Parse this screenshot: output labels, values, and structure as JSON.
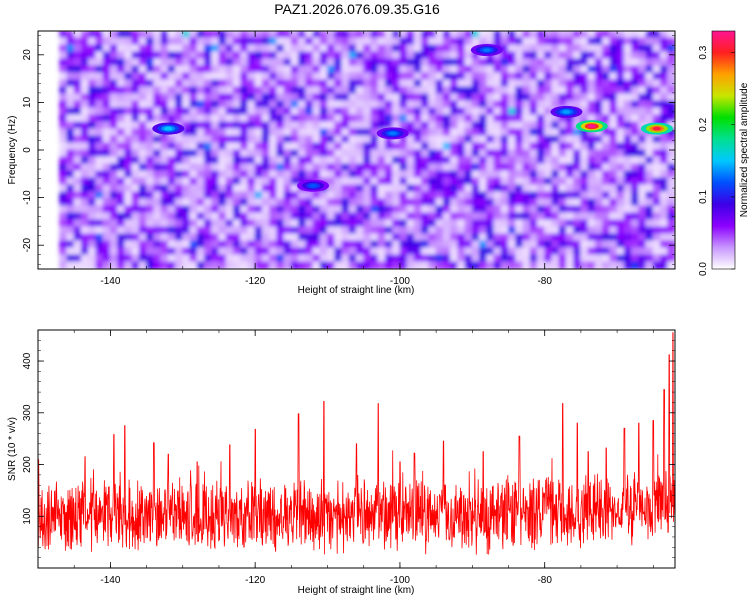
{
  "title": "PAZ1.2026.076.09.35.G16",
  "chart_data": [
    {
      "type": "heatmap",
      "title": "PAZ1.2026.076.09.35.G16",
      "xlabel": "Height of straight line (km)",
      "ylabel": "Frequency (Hz)",
      "xlim": [
        -150,
        -62
      ],
      "ylim": [
        -25,
        25
      ],
      "xticks": [
        -140,
        -120,
        -100,
        -80
      ],
      "yticks": [
        -20,
        -10,
        0,
        10,
        20
      ],
      "colorbar": {
        "label": "Normalized spectral amplitude",
        "range": [
          0.0,
          0.33
        ],
        "ticks": [
          0.0,
          0.1,
          0.2,
          0.3
        ],
        "colors": [
          "#ffffff",
          "#c896ff",
          "#8c00ff",
          "#3c00e6",
          "#0050ff",
          "#00c8ff",
          "#00e090",
          "#00e000",
          "#c8e600",
          "#ffa000",
          "#ff2020",
          "#ff1493"
        ]
      },
      "hotspots": [
        {
          "x": -73.5,
          "y": 5,
          "value": 0.33
        },
        {
          "x": -64.5,
          "y": 4.5,
          "value": 0.31
        },
        {
          "x": -77,
          "y": 8,
          "value": 0.14
        },
        {
          "x": -132,
          "y": 4.5,
          "value": 0.15
        },
        {
          "x": -88,
          "y": 21,
          "value": 0.13
        },
        {
          "x": -101,
          "y": 3.5,
          "value": 0.13
        },
        {
          "x": -112,
          "y": -7.5,
          "value": 0.12
        }
      ]
    },
    {
      "type": "line",
      "xlabel": "Height of straight line (km)",
      "ylabel": "SNR (10 * v/v)",
      "xlim": [
        -150,
        -62
      ],
      "ylim": [
        0,
        460
      ],
      "xticks": [
        -140,
        -120,
        -100,
        -80
      ],
      "yticks": [
        100,
        200,
        300,
        400
      ],
      "color": "#ff0000",
      "series": [
        {
          "name": "SNR",
          "baseline": 100,
          "spread": 55,
          "peaks": [
            {
              "x": -143.5,
              "y": 215
            },
            {
              "x": -139.5,
              "y": 258
            },
            {
              "x": -138,
              "y": 275
            },
            {
              "x": -134,
              "y": 242
            },
            {
              "x": -132,
              "y": 220
            },
            {
              "x": -128,
              "y": 205
            },
            {
              "x": -123.5,
              "y": 238
            },
            {
              "x": -120,
              "y": 268
            },
            {
              "x": -114,
              "y": 298
            },
            {
              "x": -110.5,
              "y": 322
            },
            {
              "x": -106,
              "y": 240
            },
            {
              "x": -103,
              "y": 318
            },
            {
              "x": -100,
              "y": 205
            },
            {
              "x": -98,
              "y": 222
            },
            {
              "x": -94,
              "y": 245
            },
            {
              "x": -88.5,
              "y": 225
            },
            {
              "x": -83.5,
              "y": 255
            },
            {
              "x": -77.5,
              "y": 318
            },
            {
              "x": -75.5,
              "y": 280
            },
            {
              "x": -74,
              "y": 225
            },
            {
              "x": -71.5,
              "y": 232
            },
            {
              "x": -69,
              "y": 270
            },
            {
              "x": -67,
              "y": 280
            },
            {
              "x": -65,
              "y": 285
            },
            {
              "x": -63.5,
              "y": 345
            },
            {
              "x": -62.8,
              "y": 412
            },
            {
              "x": -62.3,
              "y": 455
            }
          ]
        }
      ]
    }
  ]
}
